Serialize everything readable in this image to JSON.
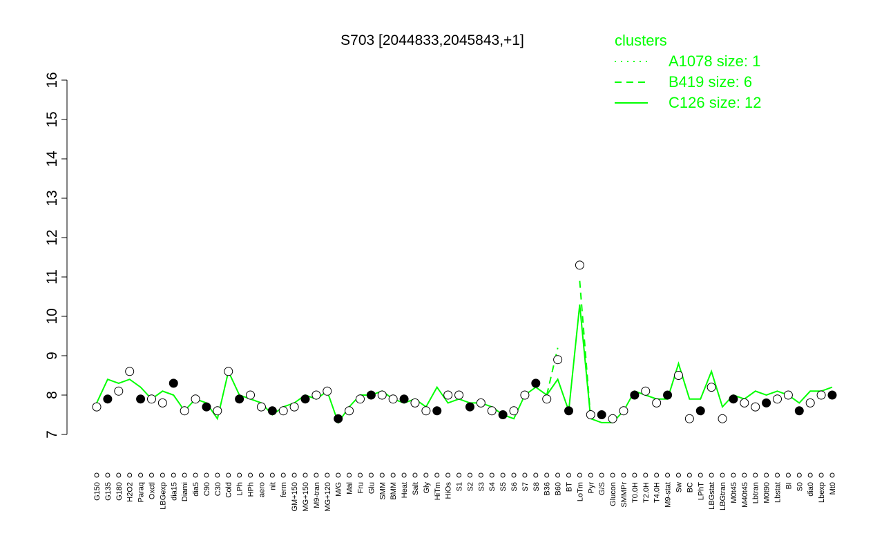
{
  "chart_data": {
    "type": "line",
    "title": "S703 [2044833,2045843,+1]",
    "categories": [
      "G150",
      "G135",
      "G180",
      "H2O2",
      "Paraq",
      "Oxctl",
      "LBGexp",
      "dia15",
      "Diami",
      "dia5",
      "C90",
      "C30",
      "Cold",
      "LPh",
      "HPh",
      "aero",
      "nit",
      "ferm",
      "GM+150",
      "MG+150",
      "M9-tran",
      "MG+120",
      "M/G",
      "Mal",
      "Fru",
      "Glu",
      "SMM",
      "BMM",
      "Heat",
      "Salt",
      "Gly",
      "HiTm",
      "HiOs",
      "S1",
      "S2",
      "S3",
      "S4",
      "S5",
      "S6",
      "S7",
      "S8",
      "B36",
      "B60",
      "BT",
      "LoTm",
      "Pyr",
      "G/S",
      "Glucon",
      "SMMPr",
      "T0.0H",
      "T2.0H",
      "T4.0H",
      "M9-stat",
      "Sw",
      "BC",
      "LPhT",
      "LBGstat",
      "LBGtran",
      "M0t45",
      "M40t45",
      "Lbtran",
      "M0t90",
      "Lbstat",
      "BI",
      "S0",
      "dia0",
      "Lbexp",
      "Mt0"
    ],
    "values": [
      7.7,
      7.9,
      8.1,
      8.6,
      7.9,
      7.9,
      7.8,
      8.3,
      7.6,
      7.9,
      7.7,
      7.6,
      8.6,
      7.9,
      8.0,
      7.7,
      7.6,
      7.6,
      7.7,
      7.9,
      8.0,
      8.1,
      7.4,
      7.6,
      7.9,
      8.0,
      8.0,
      7.9,
      7.9,
      7.8,
      7.6,
      7.6,
      8.0,
      8.0,
      7.7,
      7.8,
      7.6,
      7.5,
      7.6,
      8.0,
      8.3,
      7.9,
      8.9,
      7.6,
      11.3,
      7.5,
      7.5,
      7.4,
      7.6,
      8.0,
      8.1,
      7.8,
      8.0,
      8.5,
      7.4,
      7.6,
      8.2,
      7.4,
      7.9,
      7.8,
      7.7,
      7.8,
      7.9,
      8.0,
      7.6,
      7.8,
      8.0,
      8.0
    ],
    "series": [
      {
        "name": "A1078 size: 1",
        "color": "#00ff00",
        "dash": "dotted",
        "values": [
          null,
          null,
          null,
          null,
          null,
          null,
          null,
          null,
          null,
          null,
          null,
          null,
          null,
          null,
          null,
          null,
          null,
          null,
          null,
          null,
          null,
          null,
          null,
          null,
          null,
          null,
          null,
          null,
          null,
          null,
          null,
          null,
          null,
          null,
          null,
          null,
          null,
          null,
          null,
          null,
          null,
          null,
          null,
          null,
          null,
          null,
          null,
          null,
          null,
          null,
          null,
          null,
          null,
          null,
          null,
          null,
          null,
          null,
          null,
          null,
          null,
          null,
          null,
          null,
          null,
          null,
          null,
          null
        ]
      },
      {
        "name": "B419 size: 6",
        "color": "#00ff00",
        "dash": "dashed",
        "values": [
          null,
          null,
          null,
          null,
          null,
          null,
          null,
          null,
          null,
          null,
          null,
          null,
          null,
          null,
          null,
          null,
          null,
          null,
          null,
          null,
          null,
          null,
          null,
          null,
          null,
          null,
          null,
          null,
          null,
          null,
          null,
          null,
          null,
          null,
          null,
          null,
          null,
          null,
          null,
          null,
          null,
          8.0,
          9.2,
          null,
          10.9,
          7.4,
          null,
          null,
          null,
          null,
          null,
          null,
          null,
          null,
          null,
          null,
          null,
          null,
          null,
          null,
          null,
          null,
          null,
          null,
          null,
          null,
          null,
          null
        ]
      },
      {
        "name": "C126 size: 12",
        "color": "#00ff00",
        "dash": "solid",
        "values": [
          7.8,
          8.4,
          8.3,
          8.4,
          8.2,
          7.9,
          8.1,
          8.0,
          7.6,
          7.9,
          7.8,
          7.4,
          8.6,
          8.0,
          7.9,
          7.8,
          7.5,
          7.7,
          7.8,
          8.0,
          7.9,
          8.1,
          7.3,
          7.7,
          8.0,
          8.0,
          8.1,
          7.9,
          7.8,
          7.9,
          7.7,
          8.2,
          7.8,
          7.9,
          7.8,
          7.8,
          7.7,
          7.5,
          7.4,
          8.0,
          8.2,
          8.0,
          8.4,
          7.6,
          10.3,
          7.4,
          7.3,
          7.3,
          7.6,
          8.1,
          8.0,
          7.9,
          7.9,
          8.8,
          7.9,
          7.9,
          8.6,
          7.7,
          8.0,
          7.9,
          8.1,
          8.0,
          8.1,
          8.0,
          7.8,
          8.1,
          8.1,
          8.2
        ]
      }
    ],
    "ylim": [
      7,
      16
    ],
    "yticks": [
      7,
      8,
      9,
      10,
      11,
      12,
      13,
      14,
      15,
      16
    ],
    "legend": {
      "title": "clusters",
      "position": "top-right"
    }
  }
}
